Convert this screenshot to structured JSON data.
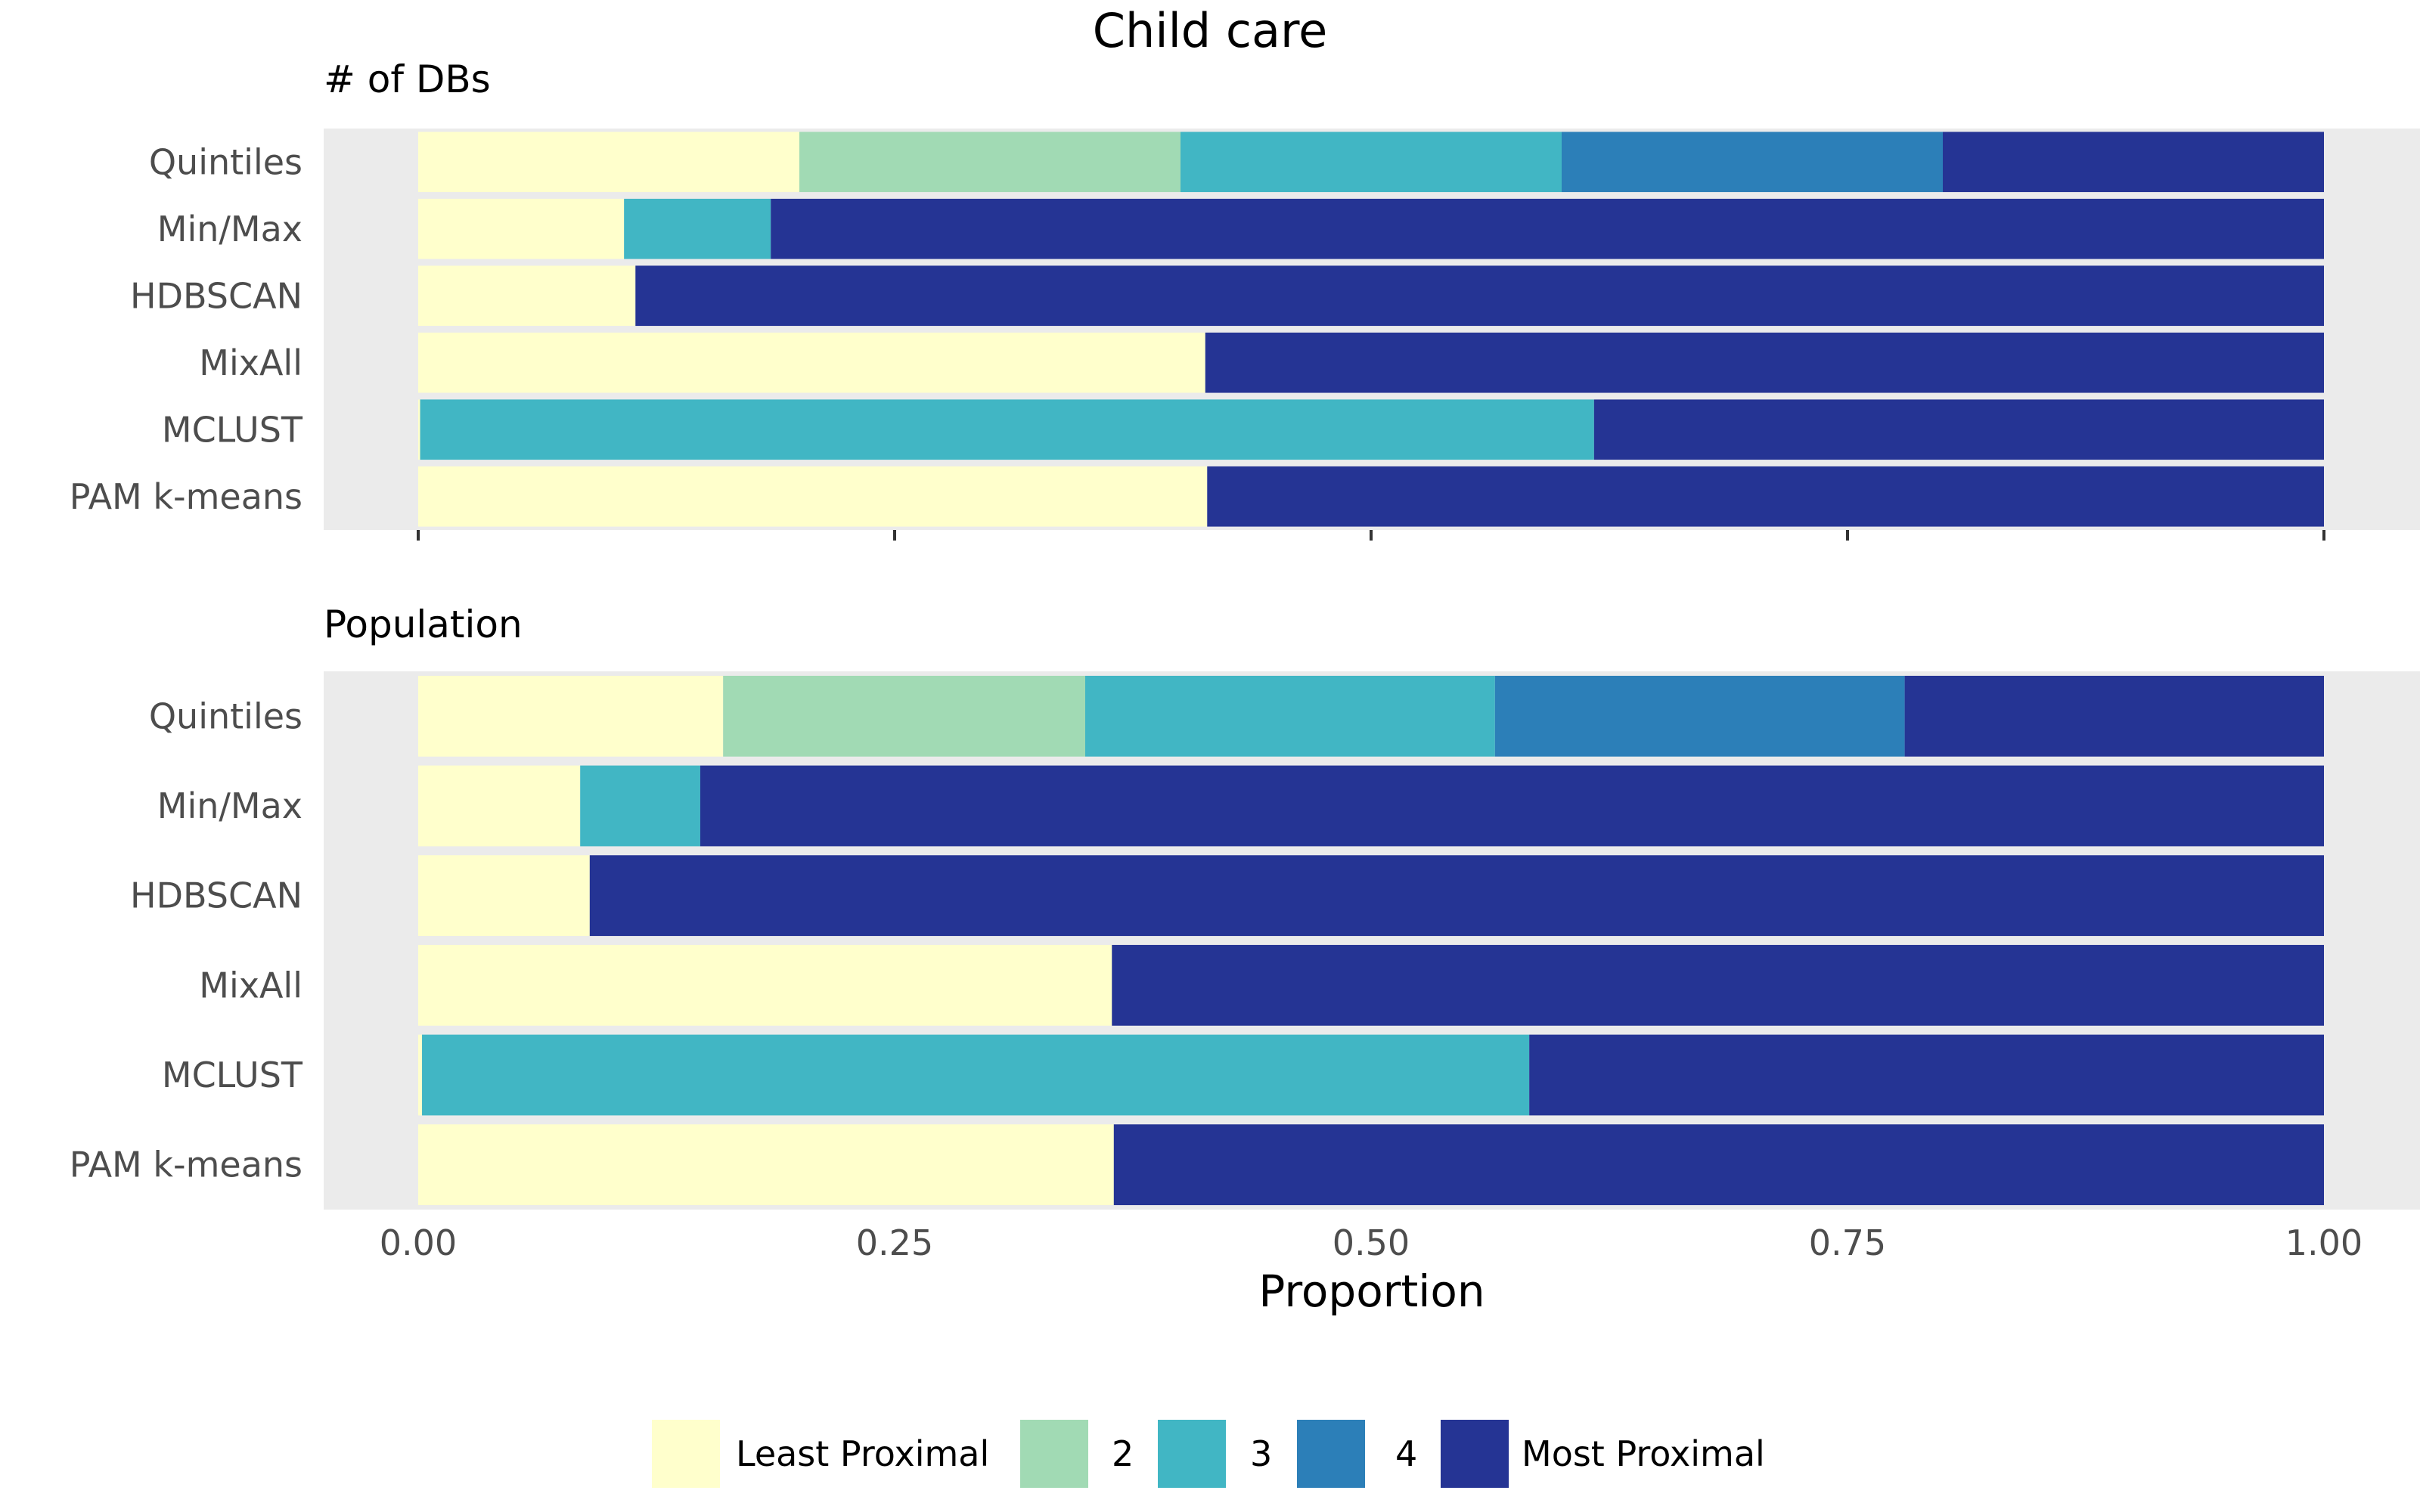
{
  "chart_data": {
    "type": "bar",
    "orientation": "horizontal",
    "stacked": true,
    "title": "Child care",
    "xlabel": "Proportion",
    "xlim": [
      0,
      1
    ],
    "xticks": [
      "0.00",
      "0.25",
      "0.50",
      "0.75",
      "1.00"
    ],
    "tick_values": [
      0,
      0.25,
      0.5,
      0.75,
      1.0
    ],
    "categories": [
      "Quintiles",
      "Min/Max",
      "HDBSCAN",
      "MixAll",
      "MCLUST",
      "PAM k-means"
    ],
    "legend": {
      "position": "bottom",
      "entries": [
        {
          "label": "Least Proximal",
          "color": "#ffffcc"
        },
        {
          "label": "2",
          "color": "#a1dab4"
        },
        {
          "label": "3",
          "color": "#41b6c4"
        },
        {
          "label": "4",
          "color": "#2c7fb8"
        },
        {
          "label": "Most Proximal",
          "color": "#253494"
        }
      ]
    },
    "panels": [
      {
        "title": "# of DBs",
        "show_tick_labels": false,
        "bars": [
          {
            "category": "Quintiles",
            "segments": [
              0.2,
              0.2,
              0.2,
              0.2,
              0.2
            ]
          },
          {
            "category": "Min/Max",
            "segments": [
              0.108,
              0.0,
              0.077,
              0.0,
              0.815
            ]
          },
          {
            "category": "HDBSCAN",
            "segments": [
              0.114,
              0.0,
              0.0,
              0.0,
              0.886
            ]
          },
          {
            "category": "MixAll",
            "segments": [
              0.413,
              0.0,
              0.0,
              0.0,
              0.587
            ]
          },
          {
            "category": "MCLUST",
            "segments": [
              0.001,
              0.0,
              0.616,
              0.0,
              0.383
            ]
          },
          {
            "category": "PAM k-means",
            "segments": [
              0.414,
              0.0,
              0.0,
              0.0,
              0.586
            ]
          }
        ]
      },
      {
        "title": "Population",
        "show_tick_labels": true,
        "bars": [
          {
            "category": "Quintiles",
            "segments": [
              0.16,
              0.19,
              0.215,
              0.215,
              0.22
            ]
          },
          {
            "category": "Min/Max",
            "segments": [
              0.085,
              0.0,
              0.063,
              0.0,
              0.852
            ]
          },
          {
            "category": "HDBSCAN",
            "segments": [
              0.09,
              0.0,
              0.0,
              0.0,
              0.91
            ]
          },
          {
            "category": "MixAll",
            "segments": [
              0.364,
              0.0,
              0.0,
              0.0,
              0.636
            ]
          },
          {
            "category": "MCLUST",
            "segments": [
              0.002,
              0.0,
              0.581,
              0.0,
              0.417
            ]
          },
          {
            "category": "PAM k-means",
            "segments": [
              0.365,
              0.0,
              0.0,
              0.0,
              0.635
            ]
          }
        ]
      }
    ]
  }
}
